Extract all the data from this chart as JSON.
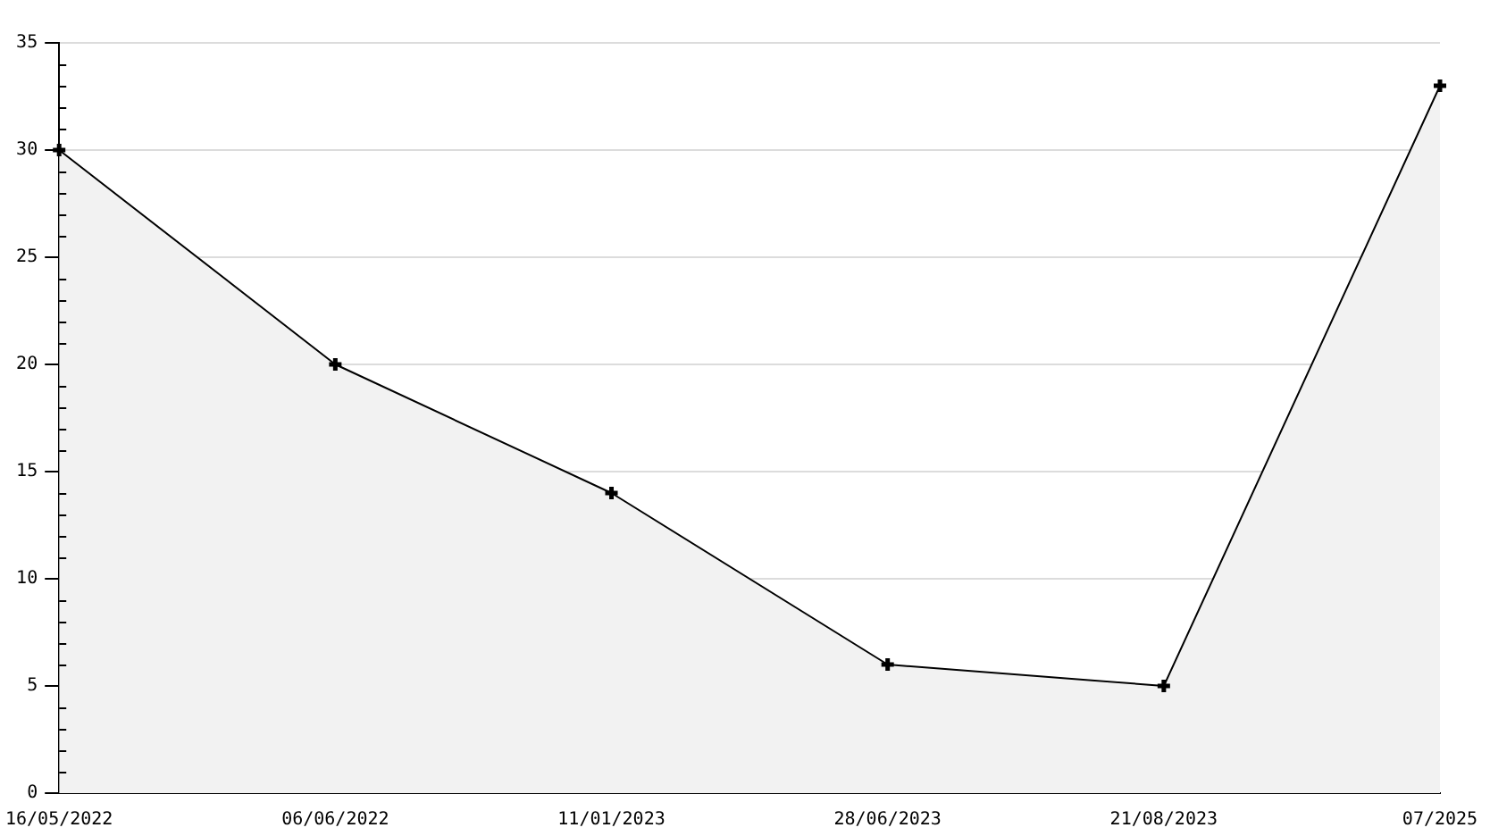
{
  "chart_data": {
    "type": "area",
    "categories": [
      "16/05/2022",
      "06/06/2022",
      "11/01/2023",
      "28/06/2023",
      "21/08/2023",
      "07/2025"
    ],
    "series": [
      {
        "color": "#000000",
        "values": [
          30,
          20,
          14,
          6,
          5,
          33
        ]
      }
    ],
    "ylim": [
      0,
      35
    ],
    "yticks": [
      0,
      5,
      10,
      15,
      20,
      25,
      30,
      35
    ],
    "grid": "y",
    "marker": "cross",
    "legend": false
  }
}
